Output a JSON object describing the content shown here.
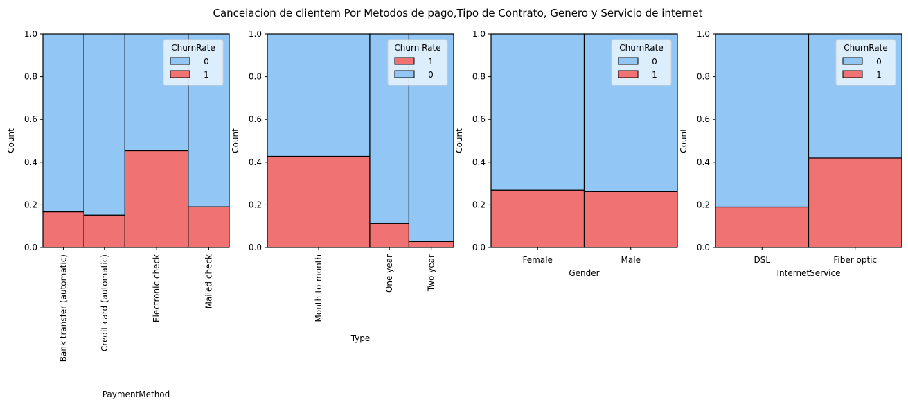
{
  "figure": {
    "title": "Cancelacion de clientem Por Metodos de pago,Tipo de Contrato, Genero y Servicio de internet"
  },
  "colors": {
    "churn_0": "#92c6f5",
    "churn_1": "#f07272",
    "bar_edge": "#000000",
    "legend_bg": "#e9f3fc"
  },
  "chart_data": [
    {
      "type": "bar",
      "stacked": true,
      "normalized": true,
      "categories": [
        "Bank transfer (automatic)",
        "Credit card (automatic)",
        "Electronic check",
        "Mailed check"
      ],
      "widths": [
        0.22,
        0.22,
        0.34,
        0.22
      ],
      "series": [
        {
          "name": "0",
          "color": "#92c6f5",
          "values": [
            0.833,
            0.848,
            0.547,
            0.809
          ]
        },
        {
          "name": "1",
          "color": "#f07272",
          "values": [
            0.167,
            0.152,
            0.453,
            0.191
          ]
        }
      ],
      "xlabel": "PaymentMethod",
      "ylabel": "Count",
      "ylim": [
        0,
        1
      ],
      "yticks": [
        "0.0",
        "0.2",
        "0.4",
        "0.6",
        "0.8",
        "1.0"
      ],
      "xtick_rotation": "vertical",
      "legend": {
        "title": "ChurnRate",
        "placement": "top-right",
        "entries": [
          "0",
          "1"
        ]
      }
    },
    {
      "type": "bar",
      "stacked": true,
      "normalized": true,
      "categories": [
        "Month-to-month",
        "One year",
        "Two year"
      ],
      "widths": [
        0.55,
        0.21,
        0.24
      ],
      "series": [
        {
          "name": "1",
          "color": "#f07272",
          "values": [
            0.427,
            0.113,
            0.028
          ]
        },
        {
          "name": "0",
          "color": "#92c6f5",
          "values": [
            0.573,
            0.887,
            0.972
          ]
        }
      ],
      "xlabel": "Type",
      "ylabel": "Count",
      "ylim": [
        0,
        1
      ],
      "yticks": [
        "0.0",
        "0.2",
        "0.4",
        "0.6",
        "0.8",
        "1.0"
      ],
      "xtick_rotation": "vertical",
      "legend": {
        "title": "Churn Rate",
        "placement": "top-right",
        "entries": [
          "1",
          "0"
        ]
      }
    },
    {
      "type": "bar",
      "stacked": true,
      "normalized": true,
      "categories": [
        "Female",
        "Male"
      ],
      "widths": [
        0.5,
        0.5
      ],
      "series": [
        {
          "name": "0",
          "color": "#92c6f5",
          "values": [
            0.731,
            0.738
          ]
        },
        {
          "name": "1",
          "color": "#f07272",
          "values": [
            0.269,
            0.262
          ]
        }
      ],
      "xlabel": "Gender",
      "ylabel": "Count",
      "ylim": [
        0,
        1
      ],
      "yticks": [
        "0.0",
        "0.2",
        "0.4",
        "0.6",
        "0.8",
        "1.0"
      ],
      "xtick_rotation": "horizontal",
      "legend": {
        "title": "ChurnRate",
        "placement": "top-right",
        "entries": [
          "0",
          "1"
        ]
      }
    },
    {
      "type": "bar",
      "stacked": true,
      "normalized": true,
      "categories": [
        "DSL",
        "Fiber optic"
      ],
      "widths": [
        0.5,
        0.5
      ],
      "series": [
        {
          "name": "0",
          "color": "#92c6f5",
          "values": [
            0.81,
            0.581
          ]
        },
        {
          "name": "1",
          "color": "#f07272",
          "values": [
            0.19,
            0.419
          ]
        }
      ],
      "xlabel": "InternetService",
      "ylabel": "Count",
      "ylim": [
        0,
        1
      ],
      "yticks": [
        "0.0",
        "0.2",
        "0.4",
        "0.6",
        "0.8",
        "1.0"
      ],
      "xtick_rotation": "horizontal",
      "legend": {
        "title": "ChurnRate",
        "placement": "top-right",
        "entries": [
          "0",
          "1"
        ]
      }
    }
  ]
}
